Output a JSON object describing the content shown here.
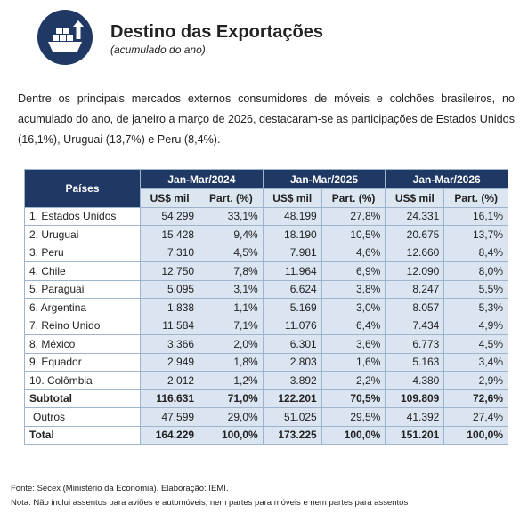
{
  "header": {
    "title": "Destino das Exportações",
    "subtitle": "(acumulado do ano)"
  },
  "intro": "Dentre os principais mercados externos consumidores de móveis e colchões brasileiros, no acumulado do ano, de janeiro a março de 2026, destacaram-se as participações de Estados Unidos (16,1%), Uruguai (13,7%) e Peru (8,4%).",
  "table": {
    "country_header": "Países",
    "periods": [
      "Jan-Mar/2024",
      "Jan-Mar/2025",
      "Jan-Mar/2026"
    ],
    "subheaders": [
      "US$ mil",
      "Part. (%)",
      "US$ mil",
      "Part. (%)",
      "US$ mil",
      "Part. (%)"
    ],
    "rows": [
      [
        "1. Estados Unidos",
        "54.299",
        "33,1%",
        "48.199",
        "27,8%",
        "24.331",
        "16,1%"
      ],
      [
        "2. Uruguai",
        "15.428",
        "9,4%",
        "18.190",
        "10,5%",
        "20.675",
        "13,7%"
      ],
      [
        "3. Peru",
        "7.310",
        "4,5%",
        "7.981",
        "4,6%",
        "12.660",
        "8,4%"
      ],
      [
        "4. Chile",
        "12.750",
        "7,8%",
        "11.964",
        "6,9%",
        "12.090",
        "8,0%"
      ],
      [
        "5. Paraguai",
        "5.095",
        "3,1%",
        "6.624",
        "3,8%",
        "8.247",
        "5,5%"
      ],
      [
        "6. Argentina",
        "1.838",
        "1,1%",
        "5.169",
        "3,0%",
        "8.057",
        "5,3%"
      ],
      [
        "7. Reino Unido",
        "11.584",
        "7,1%",
        "11.076",
        "6,4%",
        "7.434",
        "4,9%"
      ],
      [
        "8. México",
        "3.366",
        "2,0%",
        "6.301",
        "3,6%",
        "6.773",
        "4,5%"
      ],
      [
        "9. Equador",
        "2.949",
        "1,8%",
        "2.803",
        "1,6%",
        "5.163",
        "3,4%"
      ],
      [
        "10. Colômbia",
        "2.012",
        "1,2%",
        "3.892",
        "2,2%",
        "4.380",
        "2,9%"
      ],
      [
        "Subtotal",
        "116.631",
        "71,0%",
        "122.201",
        "70,5%",
        "109.809",
        "72,6%"
      ],
      [
        "Outros",
        "47.599",
        "29,0%",
        "51.025",
        "29,5%",
        "41.392",
        "27,4%"
      ],
      [
        "Total",
        "164.229",
        "100,0%",
        "173.225",
        "100,0%",
        "151.201",
        "100,0%"
      ]
    ]
  },
  "footer": {
    "source": "Fonte: Secex (Ministério da Economia). Elaboração: IEMI.",
    "note": "Nota: Não inclui assentos para aviões e automóveis, nem partes para móveis e nem partes para assentos"
  }
}
